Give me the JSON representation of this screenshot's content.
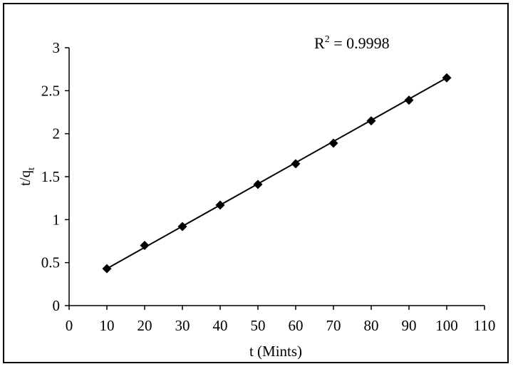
{
  "chart_data": {
    "type": "scatter",
    "x": [
      10,
      20,
      30,
      40,
      50,
      60,
      70,
      80,
      90,
      100
    ],
    "y": [
      0.43,
      0.7,
      0.92,
      1.17,
      1.41,
      1.65,
      1.89,
      2.15,
      2.39,
      2.65
    ],
    "trendline": {
      "type": "linear",
      "x_range": [
        10,
        100
      ],
      "y_range": [
        0.43,
        2.65
      ]
    },
    "annotation": {
      "r2_prefix": "R",
      "r2_sup": "2",
      "r2_value": " = 0.9998"
    },
    "xlabel": "t (Mints)",
    "ylabel_main": "t/q",
    "ylabel_sub": "t",
    "xlim": [
      0,
      110
    ],
    "ylim": [
      0,
      3
    ],
    "xticks": [
      "0",
      "10",
      "20",
      "30",
      "40",
      "50",
      "60",
      "70",
      "80",
      "90",
      "100",
      "110"
    ],
    "yticks": [
      "0",
      "0.5",
      "1",
      "1.5",
      "2",
      "2.5",
      "3"
    ],
    "grid": false,
    "legend": "none",
    "marker": "diamond",
    "color": "#000000"
  }
}
